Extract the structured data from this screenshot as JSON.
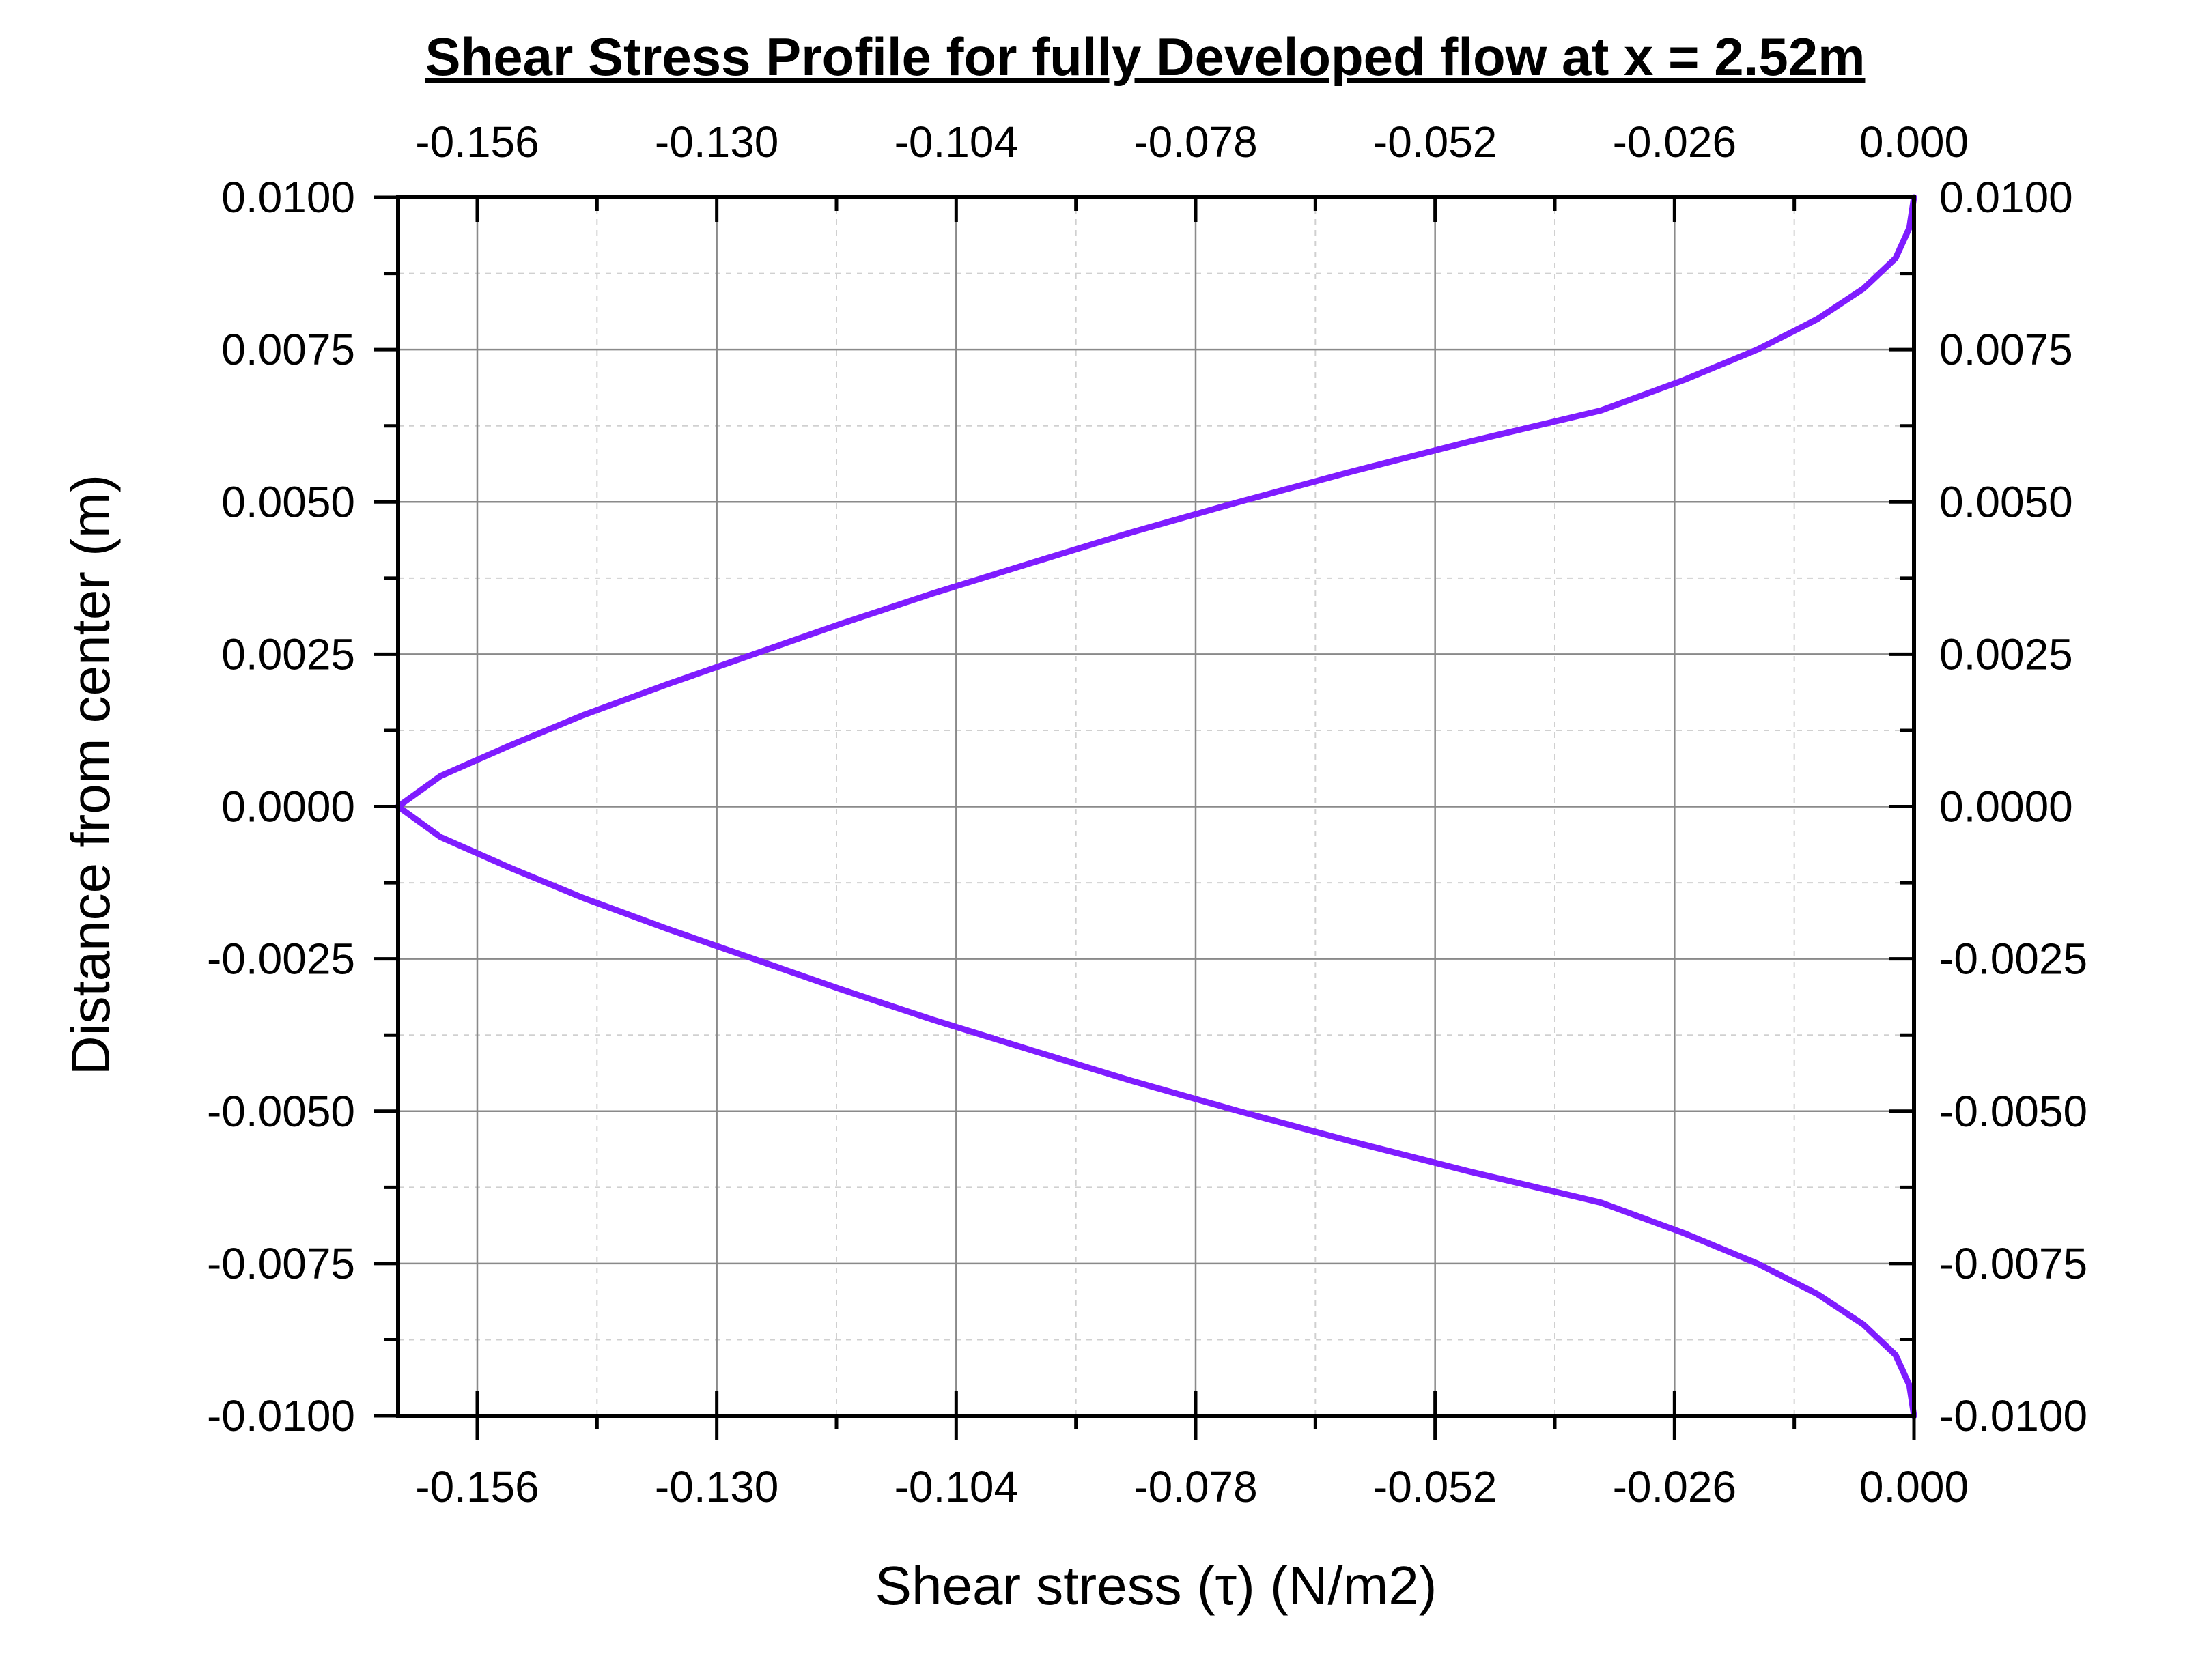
{
  "chart_data": {
    "type": "line",
    "title": "Shear Stress Profile for fully Developed flow at x = 2.52m",
    "xlabel": "Shear stress (τ) (N/m2)",
    "ylabel": "Distance from center (m)",
    "xlim": [
      -0.1646,
      0.0
    ],
    "ylim": [
      -0.01,
      0.01
    ],
    "x_ticks": [
      -0.156,
      -0.13,
      -0.104,
      -0.078,
      -0.052,
      -0.026,
      0.0
    ],
    "x_tick_labels": [
      "-0.156",
      "-0.130",
      "-0.104",
      "-0.078",
      "-0.052",
      "-0.026",
      "0.000"
    ],
    "y_ticks": [
      0.01,
      0.0075,
      0.005,
      0.0025,
      0.0,
      -0.0025,
      -0.005,
      -0.0075,
      -0.01
    ],
    "y_tick_labels": [
      "0.0100",
      "0.0075",
      "0.0050",
      "0.0025",
      "0.0000",
      "-0.0025",
      "-0.0050",
      "-0.0075",
      "-0.0100"
    ],
    "top_axis_mirrored": true,
    "right_axis_mirrored": true,
    "grid": true,
    "line_color": "#7f1cff",
    "series": [
      {
        "points": [
          [
            -0.1646,
            0.0
          ],
          [
            -0.16,
            0.0005
          ],
          [
            -0.1525,
            0.001
          ],
          [
            -0.1445,
            0.0015
          ],
          [
            -0.1355,
            0.002
          ],
          [
            -0.126,
            0.0025
          ],
          [
            -0.1165,
            0.003
          ],
          [
            -0.1065,
            0.0035
          ],
          [
            -0.0958,
            0.004
          ],
          [
            -0.085,
            0.0045
          ],
          [
            -0.0733,
            0.005
          ],
          [
            -0.061,
            0.0055
          ],
          [
            -0.048,
            0.006
          ],
          [
            -0.034,
            0.0065
          ],
          [
            -0.025,
            0.007
          ],
          [
            -0.017,
            0.0075
          ],
          [
            -0.0105,
            0.008
          ],
          [
            -0.0055,
            0.0085
          ],
          [
            -0.002,
            0.009
          ],
          [
            -0.0005,
            0.0095
          ],
          [
            0.0,
            0.01
          ]
        ]
      },
      {
        "points": [
          [
            -0.1646,
            0.0
          ],
          [
            -0.16,
            -0.0005
          ],
          [
            -0.1525,
            -0.001
          ],
          [
            -0.1445,
            -0.0015
          ],
          [
            -0.1355,
            -0.002
          ],
          [
            -0.126,
            -0.0025
          ],
          [
            -0.1165,
            -0.003
          ],
          [
            -0.1065,
            -0.0035
          ],
          [
            -0.0958,
            -0.004
          ],
          [
            -0.085,
            -0.0045
          ],
          [
            -0.0733,
            -0.005
          ],
          [
            -0.061,
            -0.0055
          ],
          [
            -0.048,
            -0.006
          ],
          [
            -0.034,
            -0.0065
          ],
          [
            -0.025,
            -0.007
          ],
          [
            -0.017,
            -0.0075
          ],
          [
            -0.0105,
            -0.008
          ],
          [
            -0.0055,
            -0.0085
          ],
          [
            -0.002,
            -0.009
          ],
          [
            -0.0005,
            -0.0095
          ],
          [
            0.0,
            -0.01
          ]
        ]
      }
    ]
  }
}
